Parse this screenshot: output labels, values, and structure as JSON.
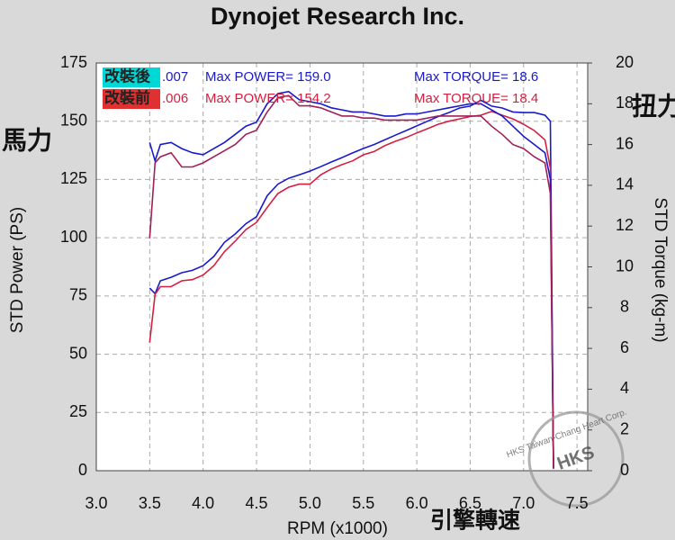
{
  "chart_data": {
    "type": "line",
    "title": "Dynojet  Research  Inc.",
    "ylabel": "STD Power (PS)",
    "y2label": "STD Torque (kg-m)",
    "xlabel": "RPM (x1000)",
    "ylabel_cn": "馬力",
    "y2label_cn": "扭力",
    "xlabel_cn": "引擎轉速",
    "legend": [
      {
        "tag": "改裝後",
        "run": ".007",
        "max_power": "Max POWER= 159.0",
        "max_torque": "Max TORQUE= 18.6",
        "color": "#1a1acc",
        "tag_color": "#00d8d8"
      },
      {
        "tag": "改裝前",
        "run": ".006",
        "max_power": "Max POWER= 154.2",
        "max_torque": "Max TORQUE= 18.4",
        "color": "#d42040",
        "tag_color": "#e03030"
      }
    ],
    "x": [
      3.5,
      3.55,
      3.6,
      3.7,
      3.8,
      3.9,
      4.0,
      4.1,
      4.2,
      4.3,
      4.4,
      4.5,
      4.6,
      4.7,
      4.8,
      4.9,
      5.0,
      5.1,
      5.2,
      5.3,
      5.4,
      5.5,
      5.6,
      5.7,
      5.8,
      5.9,
      6.0,
      6.1,
      6.2,
      6.3,
      6.4,
      6.5,
      6.6,
      6.7,
      6.8,
      6.9,
      7.0,
      7.1,
      7.2,
      7.25,
      7.28
    ],
    "series": [
      {
        "color": "#1a1acc",
        "values": [
          78.4,
          76,
          81.5,
          83,
          85,
          86,
          88,
          92,
          98,
          101.6,
          106,
          109,
          118,
          123,
          125.5,
          127,
          128.6,
          130.5,
          132.5,
          134.4,
          136.4,
          138.3,
          140,
          142,
          144,
          146,
          148,
          150,
          152,
          153.7,
          155.7,
          156.5,
          159.0,
          156.5,
          155.7,
          154,
          153.7,
          153.7,
          152.6,
          150,
          1
        ]
      },
      {
        "color": "#d42040",
        "values": [
          55,
          75.7,
          79,
          79,
          81.5,
          82,
          84,
          88,
          94,
          98.5,
          103.5,
          106.6,
          113,
          119,
          121.7,
          123,
          123,
          127,
          129.5,
          131.4,
          133,
          135.6,
          137,
          139.5,
          141.4,
          143,
          145,
          146.8,
          148.7,
          150,
          151,
          152,
          152.6,
          154.2,
          152.6,
          151,
          148.7,
          146,
          142,
          130,
          1
        ]
      },
      {
        "color": "#1a1acc",
        "axis": "y2",
        "values": [
          16.1,
          15.2,
          16,
          16.1,
          15.8,
          15.6,
          15.5,
          15.8,
          16.1,
          16.5,
          16.9,
          17.1,
          18.0,
          18.5,
          18.6,
          18.2,
          18.1,
          18.0,
          17.8,
          17.7,
          17.6,
          17.6,
          17.5,
          17.4,
          17.4,
          17.5,
          17.5,
          17.6,
          17.7,
          17.8,
          17.9,
          18.0,
          18.0,
          17.7,
          17.4,
          16.9,
          16.4,
          16.0,
          15.6,
          14.3,
          0.1
        ]
      },
      {
        "color": "#a0205a",
        "axis": "y2",
        "values": [
          11.4,
          15.1,
          15.4,
          15.6,
          14.9,
          14.9,
          15.1,
          15.4,
          15.7,
          16.0,
          16.5,
          16.7,
          17.6,
          18.3,
          18.4,
          17.9,
          17.9,
          17.8,
          17.6,
          17.4,
          17.4,
          17.3,
          17.3,
          17.2,
          17.2,
          17.2,
          17.2,
          17.3,
          17.4,
          17.4,
          17.4,
          17.4,
          17.4,
          16.9,
          16.5,
          16.0,
          15.8,
          15.4,
          15.1,
          13.6,
          0.1
        ]
      }
    ],
    "xlim": [
      3.0,
      7.6
    ],
    "xticks": [
      {
        "value": 3,
        "label": "3.0"
      },
      3.5,
      {
        "value": 4,
        "label": "4.0"
      },
      4.5,
      {
        "value": 5,
        "label": "5.0"
      },
      5.5,
      {
        "value": 6,
        "label": "6.0"
      },
      6.5,
      {
        "value": 7,
        "label": "7.0"
      },
      7.5
    ],
    "ylim": [
      0,
      175
    ],
    "yticks": [
      0,
      25,
      50,
      75,
      100,
      125,
      150,
      175
    ],
    "y2lim": [
      0,
      20
    ],
    "y2ticks": [
      0,
      2,
      4,
      6,
      8,
      10,
      12,
      14,
      16,
      18,
      20
    ],
    "grid": true,
    "watermark": [
      "HKS Taiwan-Chang Heart Corp.",
      "HKS"
    ]
  }
}
